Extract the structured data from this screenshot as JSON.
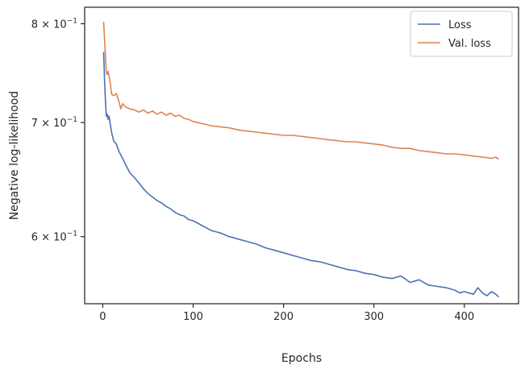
{
  "chart_data": {
    "type": "line",
    "title": "",
    "xlabel": "Epochs",
    "ylabel": "Negative log-likelihood",
    "yscale": "log",
    "xlim": [
      -20,
      460
    ],
    "ylim": [
      0.548,
      0.818
    ],
    "xticks": [
      0,
      100,
      200,
      300,
      400
    ],
    "xtick_labels": [
      "0",
      "100",
      "200",
      "300",
      "400"
    ],
    "yticks": [
      0.6,
      0.7,
      0.8
    ],
    "ytick_base": "10",
    "ytick_mantissas": [
      "6",
      "7",
      "8"
    ],
    "ytick_exponent": "−1",
    "grid": false,
    "legend_position": "top-right",
    "series": [
      {
        "name": "Loss",
        "color": "#4c72b0",
        "x": [
          1,
          2,
          3,
          4,
          5,
          6,
          7,
          8,
          10,
          12,
          15,
          18,
          20,
          25,
          30,
          35,
          40,
          45,
          50,
          55,
          60,
          65,
          70,
          75,
          80,
          85,
          90,
          95,
          100,
          110,
          120,
          130,
          140,
          150,
          160,
          170,
          180,
          190,
          200,
          210,
          220,
          230,
          240,
          250,
          260,
          270,
          280,
          290,
          300,
          310,
          320,
          330,
          340,
          350,
          360,
          370,
          380,
          390,
          395,
          400,
          410,
          415,
          420,
          425,
          430,
          435,
          438
        ],
        "y": [
          0.77,
          0.74,
          0.72,
          0.706,
          0.708,
          0.703,
          0.706,
          0.7,
          0.69,
          0.683,
          0.68,
          0.673,
          0.67,
          0.662,
          0.654,
          0.65,
          0.645,
          0.64,
          0.636,
          0.633,
          0.63,
          0.628,
          0.625,
          0.623,
          0.62,
          0.618,
          0.617,
          0.614,
          0.613,
          0.609,
          0.605,
          0.603,
          0.6,
          0.598,
          0.596,
          0.594,
          0.591,
          0.589,
          0.587,
          0.585,
          0.583,
          0.581,
          0.58,
          0.578,
          0.576,
          0.574,
          0.573,
          0.571,
          0.57,
          0.568,
          0.567,
          0.569,
          0.564,
          0.566,
          0.562,
          0.561,
          0.56,
          0.558,
          0.556,
          0.557,
          0.555,
          0.56,
          0.556,
          0.554,
          0.557,
          0.555,
          0.553
        ]
      },
      {
        "name": "Val. loss",
        "color": "#dd8452",
        "x": [
          1,
          3,
          4,
          5,
          6,
          8,
          10,
          12,
          15,
          18,
          20,
          22,
          25,
          30,
          35,
          40,
          45,
          50,
          55,
          60,
          65,
          70,
          75,
          80,
          85,
          90,
          95,
          100,
          110,
          120,
          130,
          140,
          150,
          160,
          170,
          180,
          190,
          200,
          210,
          220,
          230,
          240,
          250,
          260,
          270,
          280,
          290,
          300,
          310,
          320,
          330,
          340,
          350,
          360,
          370,
          380,
          390,
          400,
          410,
          420,
          430,
          435,
          438
        ],
        "y": [
          0.802,
          0.765,
          0.748,
          0.747,
          0.75,
          0.74,
          0.727,
          0.726,
          0.728,
          0.72,
          0.713,
          0.718,
          0.715,
          0.713,
          0.712,
          0.71,
          0.712,
          0.709,
          0.711,
          0.708,
          0.71,
          0.707,
          0.709,
          0.706,
          0.707,
          0.704,
          0.703,
          0.701,
          0.699,
          0.697,
          0.696,
          0.695,
          0.693,
          0.692,
          0.691,
          0.69,
          0.689,
          0.688,
          0.688,
          0.687,
          0.686,
          0.685,
          0.684,
          0.683,
          0.682,
          0.682,
          0.681,
          0.68,
          0.679,
          0.677,
          0.676,
          0.676,
          0.674,
          0.673,
          0.672,
          0.671,
          0.671,
          0.67,
          0.669,
          0.668,
          0.667,
          0.668,
          0.666
        ]
      }
    ]
  }
}
